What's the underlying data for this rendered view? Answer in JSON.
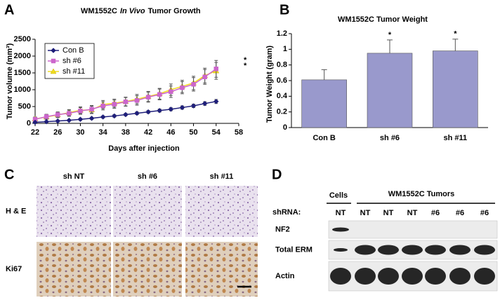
{
  "chart_data": [
    {
      "type": "line",
      "label": "A",
      "title_parts": [
        "WM1552C",
        "In Vivo",
        "Tumor Growth"
      ],
      "x_label": "Days after injection",
      "y_label": "Tumor volume (mm³)",
      "x": [
        22,
        24,
        26,
        28,
        30,
        32,
        34,
        36,
        38,
        40,
        42,
        44,
        46,
        48,
        50,
        52,
        54
      ],
      "xlim": [
        22,
        58
      ],
      "xticks": [
        22,
        26,
        30,
        34,
        38,
        42,
        46,
        50,
        54,
        58
      ],
      "ylim": [
        0,
        2500
      ],
      "yticks": [
        0,
        500,
        1000,
        1500,
        2000,
        2500
      ],
      "legend": "top-left",
      "series": [
        {
          "name": "Con B",
          "color": "#1f1f7a",
          "marker": "diamond",
          "values": [
            30,
            50,
            70,
            90,
            120,
            150,
            190,
            220,
            260,
            300,
            340,
            380,
            420,
            470,
            520,
            590,
            650
          ],
          "errors": [
            20,
            20,
            25,
            25,
            30,
            30,
            30,
            35,
            35,
            40,
            40,
            45,
            45,
            50,
            50,
            55,
            60
          ]
        },
        {
          "name": "sh #6",
          "color": "#cc66cc",
          "marker": "square",
          "values": [
            120,
            200,
            260,
            300,
            370,
            420,
            520,
            570,
            640,
            680,
            780,
            860,
            940,
            1060,
            1160,
            1380,
            1620
          ],
          "errors": [
            60,
            70,
            80,
            90,
            100,
            110,
            120,
            120,
            130,
            140,
            150,
            160,
            170,
            180,
            200,
            220,
            250
          ]
        },
        {
          "name": "sh #11",
          "color": "#f0dc20",
          "marker": "triangle",
          "values": [
            130,
            190,
            250,
            320,
            390,
            400,
            560,
            600,
            650,
            720,
            800,
            880,
            1000,
            1100,
            1200,
            1420,
            1560
          ],
          "errors": [
            60,
            70,
            80,
            90,
            100,
            110,
            120,
            120,
            130,
            140,
            150,
            160,
            170,
            180,
            200,
            220,
            250
          ]
        }
      ],
      "annotations": [
        "*",
        "*"
      ]
    },
    {
      "type": "bar",
      "label": "B",
      "title": "WM1552C Tumor Weight",
      "y_label": "Tumor Weight (gram)",
      "categories": [
        "Con B",
        "sh #6",
        "sh #11"
      ],
      "values": [
        0.61,
        0.95,
        0.98
      ],
      "errors": [
        0.13,
        0.17,
        0.15
      ],
      "color": "#9999cc",
      "ylim": [
        0,
        1.2
      ],
      "yticks": [
        0,
        0.2,
        0.4,
        0.6,
        0.8,
        1,
        1.2
      ],
      "annotations": [
        "*",
        "*"
      ]
    }
  ],
  "panel_c": {
    "label": "C",
    "columns": [
      "sh NT",
      "sh #6",
      "sh #11"
    ],
    "rows": [
      "H & E",
      "Ki67"
    ]
  },
  "panel_d": {
    "label": "D",
    "cells": "Cells",
    "tumors": "WM1552C Tumors",
    "shrna": "shRNA:",
    "lanes": [
      "NT",
      "NT",
      "NT",
      "NT",
      "#6",
      "#6",
      "#6"
    ],
    "rows": [
      "NF2",
      "Total ERM",
      "Actin"
    ]
  }
}
